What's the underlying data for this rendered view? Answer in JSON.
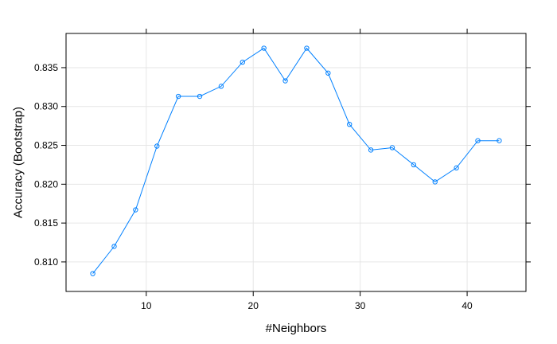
{
  "chart_data": {
    "type": "line",
    "title": "",
    "xlabel": "#Neighbors",
    "ylabel": "Accuracy (Bootstrap)",
    "xlim": [
      2.5,
      45.5
    ],
    "ylim": [
      0.8062,
      0.8394
    ],
    "x_ticks": [
      10,
      20,
      30,
      40
    ],
    "y_ticks": [
      0.81,
      0.815,
      0.82,
      0.825,
      0.83,
      0.835
    ],
    "x_tick_labels": [
      "10",
      "20",
      "30",
      "40"
    ],
    "y_tick_labels": [
      "0.810",
      "0.815",
      "0.820",
      "0.825",
      "0.830",
      "0.835"
    ],
    "grid": true,
    "line_color": "#0080FF",
    "series": [
      {
        "x": [
          5,
          7,
          9,
          11,
          13,
          15,
          17,
          19,
          21,
          23,
          25,
          27,
          29,
          31,
          33,
          35,
          37,
          39,
          41,
          43
        ],
        "values": [
          0.8085,
          0.812,
          0.8167,
          0.8249,
          0.8313,
          0.8313,
          0.8326,
          0.8357,
          0.8375,
          0.8333,
          0.8375,
          0.8343,
          0.8277,
          0.8244,
          0.8247,
          0.8225,
          0.8203,
          0.8221,
          0.8256,
          0.8256
        ]
      }
    ]
  }
}
